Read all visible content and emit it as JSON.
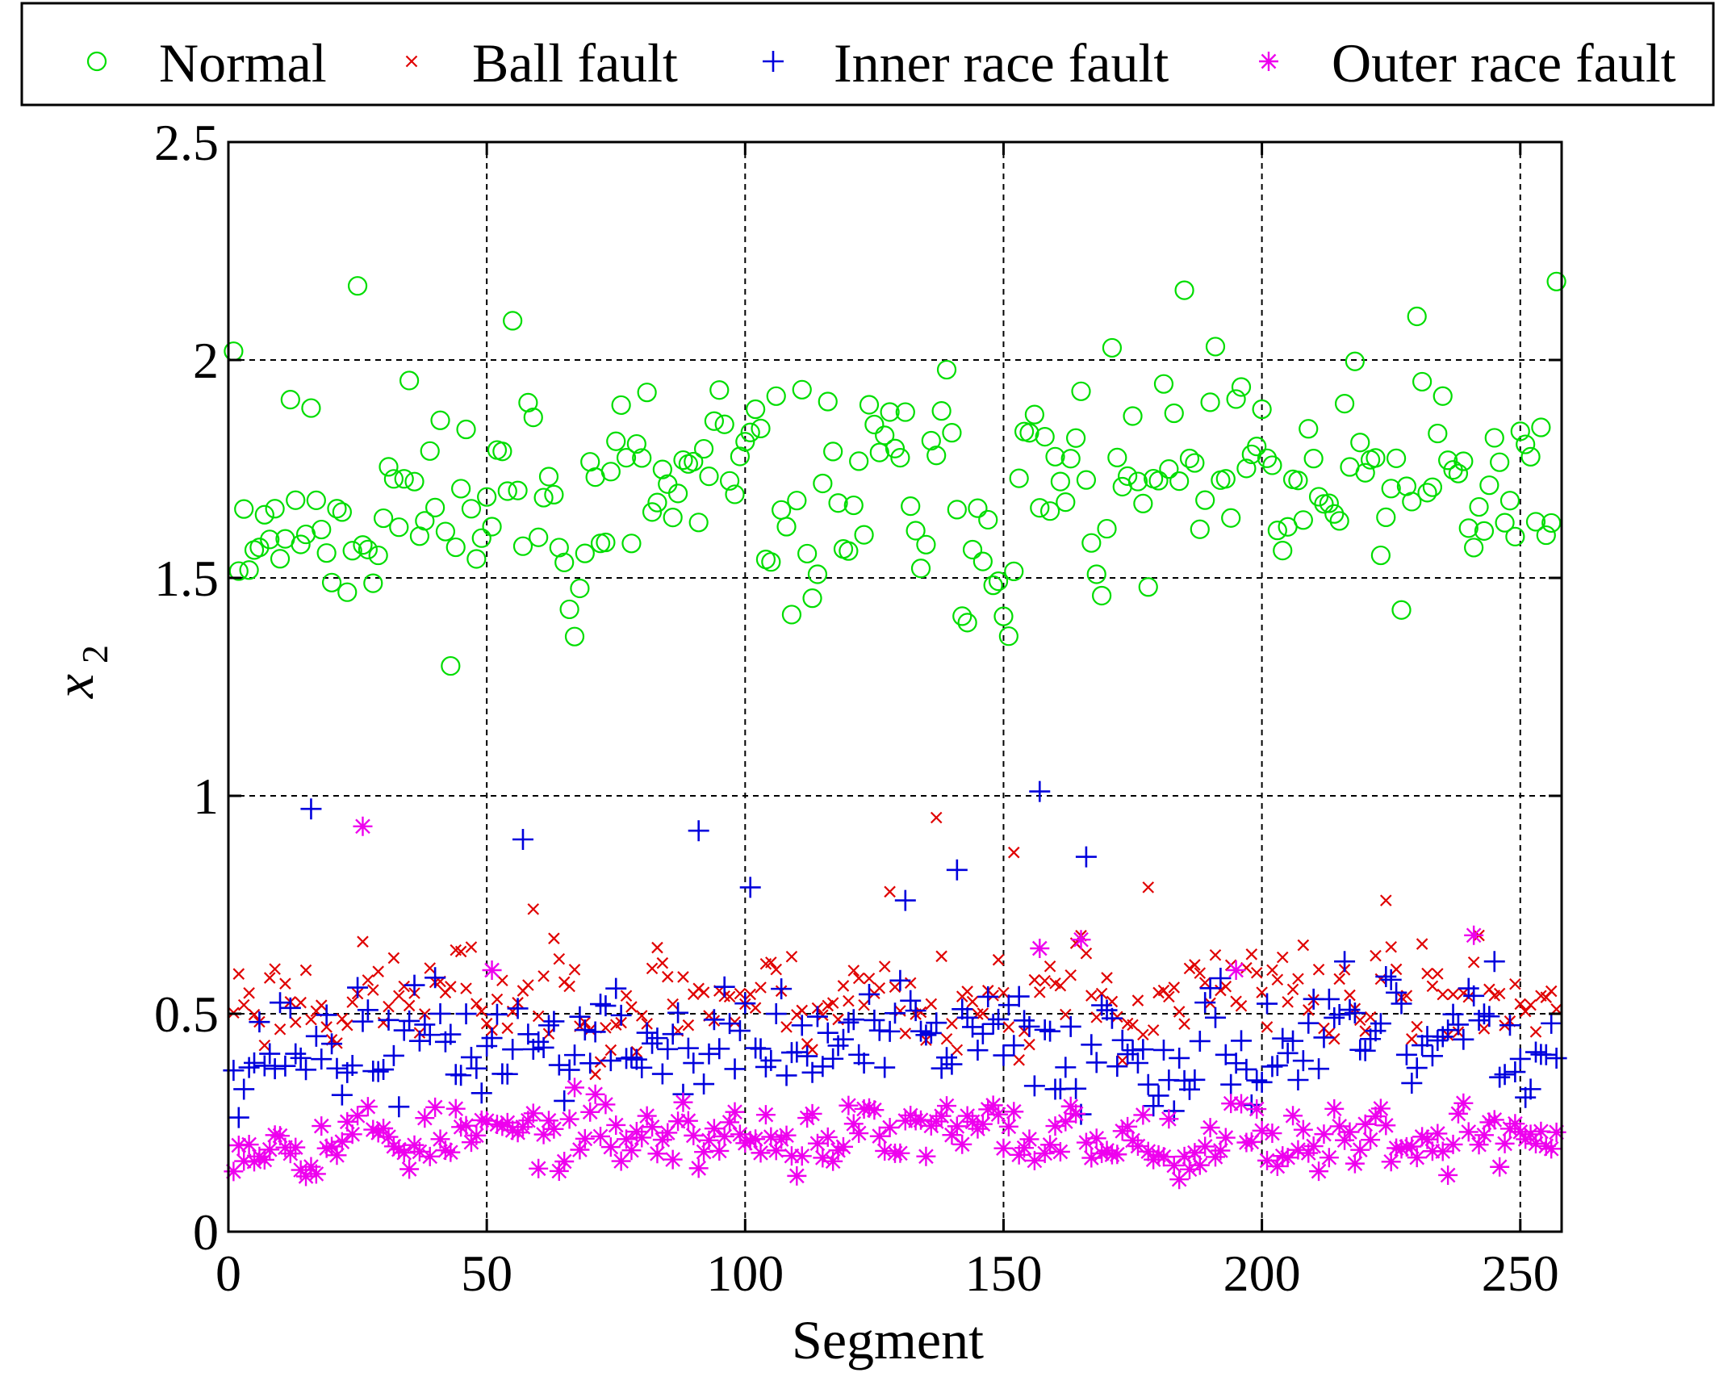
{
  "chart_data": {
    "type": "scatter",
    "title": "",
    "xlabel": "Segment",
    "ylabel": "x",
    "ylabel_subscript": "2",
    "xlim": [
      0,
      258
    ],
    "ylim": [
      0,
      2.5
    ],
    "xticks": [
      0,
      50,
      100,
      150,
      200,
      250
    ],
    "xtick_labels": [
      "0",
      "50",
      "100",
      "150",
      "200",
      "250"
    ],
    "yticks": [
      0,
      0.5,
      1,
      1.5,
      2,
      2.5
    ],
    "ytick_labels": [
      "0",
      "0.5",
      "1",
      "1.5",
      "2",
      "2.5"
    ],
    "grid": true,
    "legend_position": "top",
    "x_range": [
      1,
      257
    ],
    "series": [
      {
        "name": "Normal",
        "marker": "circle",
        "color": "#00dd00",
        "seed": 11,
        "center": 1.68,
        "spread": 0.2,
        "min": 1.22,
        "max": 2.18,
        "outliers": [
          [
            1,
            2.02
          ],
          [
            25,
            2.17
          ],
          [
            55,
            2.09
          ],
          [
            185,
            2.16
          ],
          [
            230,
            2.1
          ],
          [
            257,
            2.18
          ]
        ]
      },
      {
        "name": "Ball fault",
        "marker": "x",
        "color": "#e00000",
        "seed": 23,
        "center": 0.54,
        "spread": 0.09,
        "min": 0.36,
        "max": 0.72,
        "outliers": [
          [
            137,
            0.95
          ],
          [
            152,
            0.87
          ],
          [
            128,
            0.78
          ],
          [
            178,
            0.79
          ],
          [
            224,
            0.76
          ],
          [
            59,
            0.74
          ]
        ]
      },
      {
        "name": "Inner race fault",
        "marker": "plus",
        "color": "#0000dd",
        "seed": 37,
        "center": 0.43,
        "spread": 0.1,
        "min": 0.25,
        "max": 0.62,
        "outliers": [
          [
            16,
            0.97
          ],
          [
            57,
            0.9
          ],
          [
            91,
            0.92
          ],
          [
            157,
            1.01
          ],
          [
            166,
            0.86
          ],
          [
            141,
            0.83
          ],
          [
            101,
            0.79
          ],
          [
            131,
            0.76
          ]
        ]
      },
      {
        "name": "Outer race fault",
        "marker": "star",
        "color": "#ee00ee",
        "seed": 53,
        "center": 0.22,
        "spread": 0.06,
        "min": 0.12,
        "max": 0.4,
        "outliers": [
          [
            26,
            0.93
          ],
          [
            241,
            0.68
          ],
          [
            165,
            0.67
          ],
          [
            157,
            0.65
          ],
          [
            51,
            0.6
          ],
          [
            195,
            0.6
          ]
        ]
      }
    ]
  }
}
